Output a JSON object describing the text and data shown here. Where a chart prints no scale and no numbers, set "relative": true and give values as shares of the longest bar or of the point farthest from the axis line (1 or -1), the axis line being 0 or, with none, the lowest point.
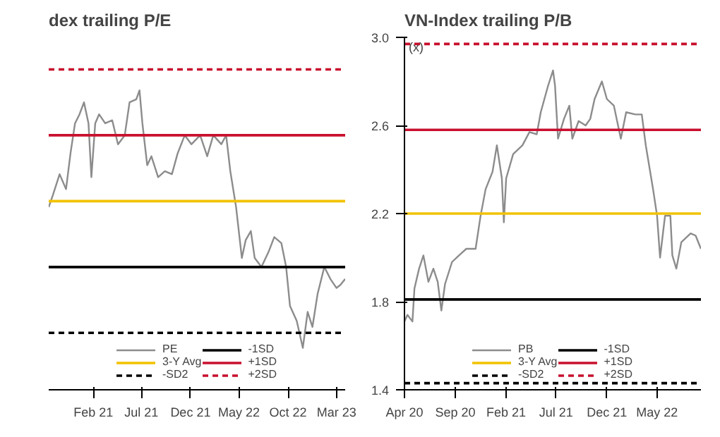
{
  "chart_data": [
    {
      "type": "line",
      "title": "dex trailing P/E",
      "relative": true,
      "legend": "bottom",
      "grid": false,
      "tick_labels": "x",
      "xlim": [
        "2020-09-15",
        "2023-03-28"
      ],
      "xticks": [
        {
          "value": "2021-02-01",
          "label": "Feb 21"
        },
        {
          "value": "2021-07-01",
          "label": "Jul 21"
        },
        {
          "value": "2021-12-01",
          "label": "Dec 21"
        },
        {
          "value": "2022-05-01",
          "label": "May 22"
        },
        {
          "value": "2022-10-01",
          "label": "Oct 22"
        },
        {
          "value": "2023-03-01",
          "label": "Mar 23"
        }
      ],
      "x": [
        "2020-09-15",
        "2020-09-28",
        "2020-10-19",
        "2020-11-08",
        "2020-11-22",
        "2020-12-06",
        "2020-12-20",
        "2021-01-03",
        "2021-01-17",
        "2021-01-26",
        "2021-02-07",
        "2021-02-19",
        "2021-03-10",
        "2021-04-01",
        "2021-04-19",
        "2021-05-10",
        "2021-05-25",
        "2021-06-15",
        "2021-06-25",
        "2021-07-04",
        "2021-07-19",
        "2021-08-01",
        "2021-08-22",
        "2021-09-12",
        "2021-10-04",
        "2021-10-22",
        "2021-11-13",
        "2021-12-04",
        "2021-12-31",
        "2022-01-22",
        "2022-02-10",
        "2022-03-07",
        "2022-03-22",
        "2022-04-04",
        "2022-04-22",
        "2022-05-10",
        "2022-05-22",
        "2022-06-07",
        "2022-06-19",
        "2022-07-10",
        "2022-08-01",
        "2022-08-19",
        "2022-09-10",
        "2022-09-25",
        "2022-10-07",
        "2022-10-28",
        "2022-11-16",
        "2022-12-01",
        "2022-12-16",
        "2023-01-01",
        "2023-01-22",
        "2023-02-10",
        "2023-03-01",
        "2023-03-13",
        "2023-03-28"
      ],
      "series": [
        {
          "name": "PE",
          "color": "#8c8c8c",
          "values": [
            0.61,
            0.65,
            0.72,
            0.67,
            0.79,
            0.89,
            0.92,
            0.96,
            0.89,
            0.71,
            0.89,
            0.92,
            0.89,
            0.9,
            0.82,
            0.85,
            0.96,
            0.97,
            1.0,
            0.89,
            0.75,
            0.78,
            0.71,
            0.73,
            0.72,
            0.79,
            0.85,
            0.82,
            0.85,
            0.78,
            0.85,
            0.82,
            0.85,
            0.73,
            0.61,
            0.44,
            0.5,
            0.53,
            0.44,
            0.41,
            0.46,
            0.51,
            0.49,
            0.41,
            0.28,
            0.23,
            0.14,
            0.26,
            0.21,
            0.32,
            0.41,
            0.37,
            0.34,
            0.35,
            0.37
          ]
        }
      ],
      "ref_lines": [
        {
          "axis": "y",
          "value": 0.63,
          "label": "3-Y Avg",
          "color": "#f2c200",
          "line_style": "solid"
        },
        {
          "axis": "y",
          "value": 0.19,
          "label": "-SD2",
          "color": "#000000",
          "line_style": "dashed"
        },
        {
          "axis": "y",
          "value": 0.41,
          "label": "-1SD",
          "color": "#000000",
          "line_style": "solid"
        },
        {
          "axis": "y",
          "value": 0.85,
          "label": "+1SD",
          "color": "#c8102e",
          "line_style": "solid"
        },
        {
          "axis": "y",
          "value": 1.07,
          "label": "+2SD",
          "color": "#c8102e",
          "line_style": "dashed"
        }
      ]
    },
    {
      "type": "line",
      "title": "VN-Index trailing P/B",
      "ylabel": "(x)",
      "legend": "bottom",
      "grid": false,
      "xlim": [
        "2020-04-01",
        "2022-09-10"
      ],
      "ylim": [
        1.4,
        3.0
      ],
      "yticks": [
        {
          "value": 1.4,
          "label": "1.4"
        },
        {
          "value": 1.8,
          "label": "1.8"
        },
        {
          "value": 2.2,
          "label": "2.2"
        },
        {
          "value": 2.6,
          "label": "2.6"
        },
        {
          "value": 3.0,
          "label": "3.0"
        }
      ],
      "xticks": [
        {
          "value": "2020-04-01",
          "label": "Apr 20"
        },
        {
          "value": "2020-09-01",
          "label": "Sep 20"
        },
        {
          "value": "2021-02-01",
          "label": "Feb 21"
        },
        {
          "value": "2021-07-01",
          "label": "Jul 21"
        },
        {
          "value": "2021-12-01",
          "label": "Dec 21"
        },
        {
          "value": "2022-05-01",
          "label": "May 22"
        }
      ],
      "x": [
        "2020-04-01",
        "2020-04-10",
        "2020-04-25",
        "2020-05-01",
        "2020-05-15",
        "2020-05-28",
        "2020-06-12",
        "2020-06-27",
        "2020-07-10",
        "2020-07-21",
        "2020-08-01",
        "2020-08-22",
        "2020-09-12",
        "2020-10-04",
        "2020-11-01",
        "2020-11-16",
        "2020-12-01",
        "2020-12-22",
        "2021-01-04",
        "2021-01-19",
        "2021-01-25",
        "2021-02-01",
        "2021-02-22",
        "2021-03-22",
        "2021-04-12",
        "2021-05-04",
        "2021-05-16",
        "2021-06-07",
        "2021-06-22",
        "2021-06-28",
        "2021-07-07",
        "2021-07-25",
        "2021-08-10",
        "2021-08-19",
        "2021-09-07",
        "2021-09-28",
        "2021-10-12",
        "2021-10-25",
        "2021-11-16",
        "2021-12-01",
        "2021-12-22",
        "2022-01-12",
        "2022-01-28",
        "2022-02-25",
        "2022-03-16",
        "2022-03-28",
        "2022-04-19",
        "2022-05-01",
        "2022-05-10",
        "2022-05-25",
        "2022-06-10",
        "2022-06-16",
        "2022-06-28",
        "2022-07-13",
        "2022-08-10",
        "2022-08-25",
        "2022-09-10"
      ],
      "series": [
        {
          "name": "PB",
          "color": "#8c8c8c",
          "values": [
            1.71,
            1.74,
            1.71,
            1.86,
            1.95,
            2.01,
            1.89,
            1.95,
            1.89,
            1.76,
            1.88,
            1.98,
            2.01,
            2.04,
            2.04,
            2.19,
            2.31,
            2.39,
            2.51,
            2.36,
            2.16,
            2.36,
            2.47,
            2.51,
            2.57,
            2.56,
            2.66,
            2.78,
            2.85,
            2.78,
            2.54,
            2.63,
            2.69,
            2.54,
            2.62,
            2.6,
            2.63,
            2.72,
            2.8,
            2.72,
            2.69,
            2.54,
            2.66,
            2.65,
            2.65,
            2.51,
            2.31,
            2.19,
            2.0,
            2.19,
            2.19,
            2.01,
            1.95,
            2.07,
            2.11,
            2.1,
            2.04
          ]
        }
      ],
      "ref_lines": [
        {
          "axis": "y",
          "value": 2.2,
          "label": "3-Y Avg",
          "color": "#f2c200",
          "line_style": "solid"
        },
        {
          "axis": "y",
          "value": 1.43,
          "label": "-SD2",
          "color": "#000000",
          "line_style": "dashed"
        },
        {
          "axis": "y",
          "value": 1.81,
          "label": "-1SD",
          "color": "#000000",
          "line_style": "solid"
        },
        {
          "axis": "y",
          "value": 2.58,
          "label": "+1SD",
          "color": "#c8102e",
          "line_style": "solid"
        },
        {
          "axis": "y",
          "value": 2.97,
          "label": "+2SD",
          "color": "#c8102e",
          "line_style": "dashed"
        }
      ]
    }
  ]
}
